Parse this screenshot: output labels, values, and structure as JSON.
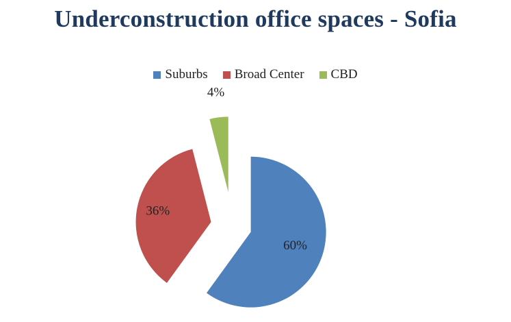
{
  "chart_data": {
    "type": "pie",
    "title": "Underconstruction office spaces - Sofia",
    "legend_position": "top",
    "slices": [
      {
        "name": "Suburbs",
        "value": 60,
        "label": "60%",
        "color": "#4f81bd"
      },
      {
        "name": "Broad Center",
        "value": 36,
        "label": "36%",
        "color": "#c0504d"
      },
      {
        "name": "CBD",
        "value": 4,
        "label": "4%",
        "color": "#9bbb59"
      }
    ]
  }
}
